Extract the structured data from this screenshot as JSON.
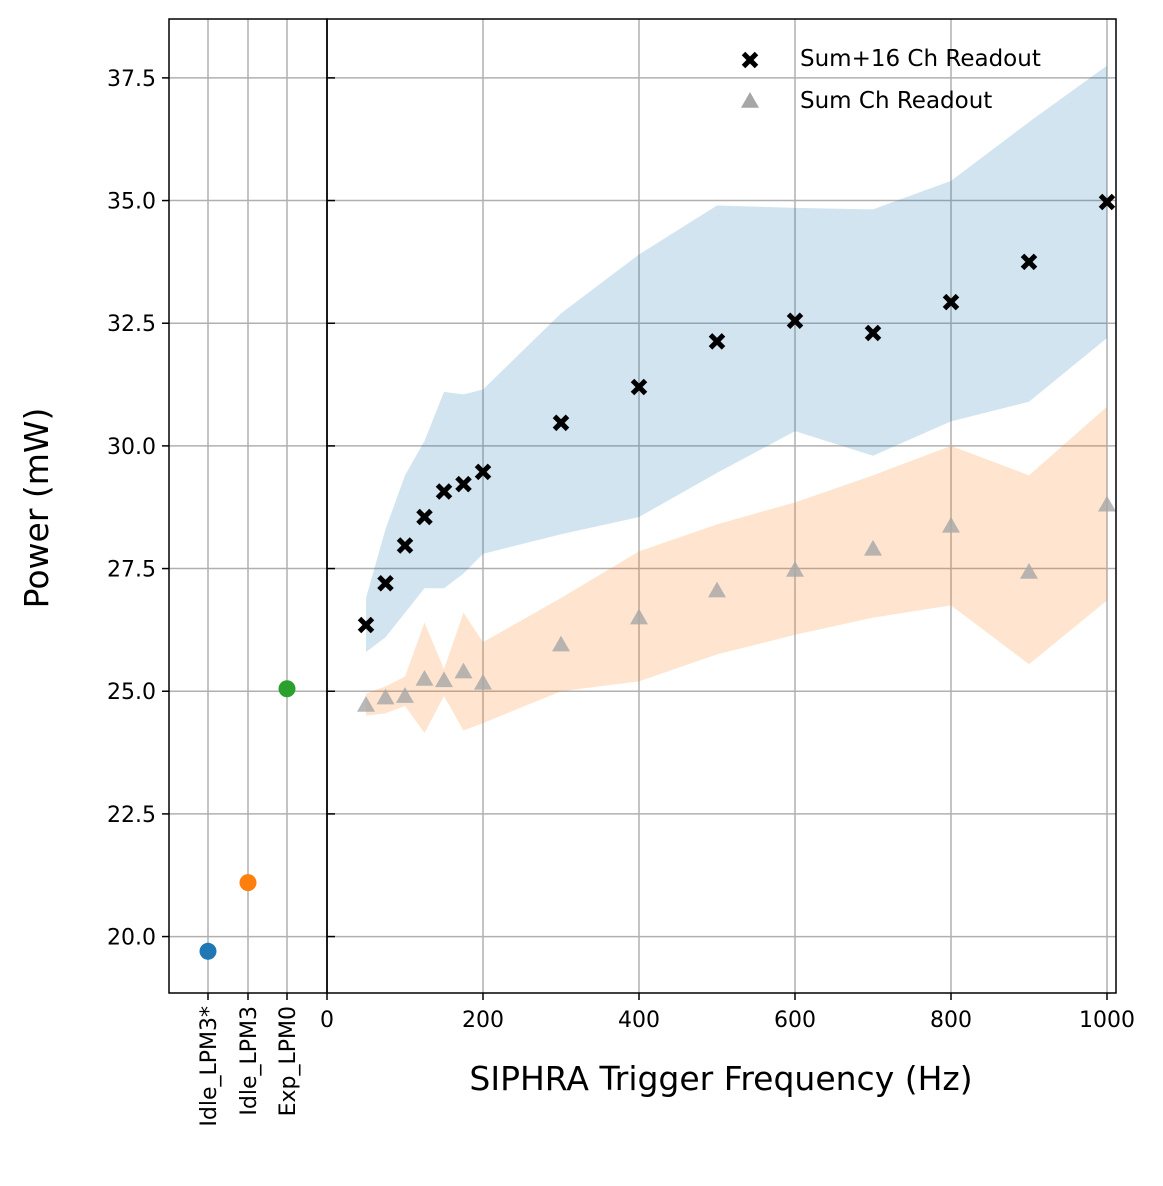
{
  "chart_data": {
    "type": "scatter",
    "xlabel": "SIPHRA Trigger Frequency (Hz)",
    "ylabel": "Power (mW)",
    "xlim": [
      0,
      1010
    ],
    "ylim": [
      18.85,
      38.7
    ],
    "x_ticks": [
      0,
      200,
      400,
      600,
      800,
      1000
    ],
    "y_ticks": [
      20.0,
      22.5,
      25.0,
      27.5,
      30.0,
      32.5,
      35.0,
      37.5
    ],
    "x_tick_labels": [
      "0",
      "200",
      "400",
      "600",
      "800",
      "1000"
    ],
    "y_tick_labels": [
      "20.0",
      "22.5",
      "25.0",
      "27.5",
      "30.0",
      "32.5",
      "35.0",
      "37.5"
    ],
    "grid": true,
    "legend_position": "top-right",
    "modes": {
      "categories": [
        "Idle_LPM3*",
        "Idle_LPM3",
        "Exp_LPM0"
      ],
      "values": [
        19.7,
        21.1,
        25.05
      ],
      "colors": [
        "#1f77b4",
        "#ff7f0e",
        "#2ca02c"
      ]
    },
    "series": [
      {
        "name": "Sum+16 Ch Readout",
        "marker": "x",
        "color": "#000000",
        "x": [
          50,
          75,
          100,
          125,
          150,
          175,
          200,
          300,
          400,
          500,
          600,
          700,
          800,
          900,
          1000
        ],
        "y": [
          26.35,
          27.2,
          27.97,
          28.55,
          29.07,
          29.22,
          29.47,
          30.47,
          31.2,
          32.13,
          32.55,
          32.3,
          32.93,
          33.75,
          34.97
        ],
        "band_color": "#1f77b4",
        "band_upper": [
          26.9,
          28.3,
          29.4,
          30.1,
          31.1,
          31.05,
          31.15,
          32.7,
          33.9,
          34.9,
          34.85,
          34.82,
          35.4,
          36.6,
          37.75
        ],
        "band_lower": [
          25.8,
          26.1,
          26.6,
          27.1,
          27.1,
          27.4,
          27.8,
          28.2,
          28.55,
          29.45,
          30.3,
          29.8,
          30.5,
          30.9,
          32.2
        ]
      },
      {
        "name": "Sum Ch Readout",
        "marker": "^",
        "color": "#a6a6a6",
        "x": [
          50,
          75,
          100,
          125,
          150,
          175,
          200,
          300,
          400,
          500,
          600,
          700,
          800,
          900,
          1000
        ],
        "y": [
          24.72,
          24.87,
          24.9,
          25.25,
          25.22,
          25.4,
          25.17,
          25.95,
          26.5,
          27.05,
          27.47,
          27.9,
          28.37,
          27.43,
          28.8
        ],
        "band_color": "#ff7f0e",
        "band_upper": [
          24.95,
          25.1,
          25.3,
          26.4,
          25.45,
          26.6,
          26.0,
          26.9,
          27.85,
          28.4,
          28.85,
          29.4,
          30.0,
          29.4,
          30.8
        ],
        "band_lower": [
          24.5,
          24.55,
          24.7,
          24.15,
          24.9,
          24.2,
          24.35,
          25.0,
          25.2,
          25.75,
          26.15,
          26.5,
          26.75,
          25.55,
          26.85
        ]
      }
    ]
  }
}
